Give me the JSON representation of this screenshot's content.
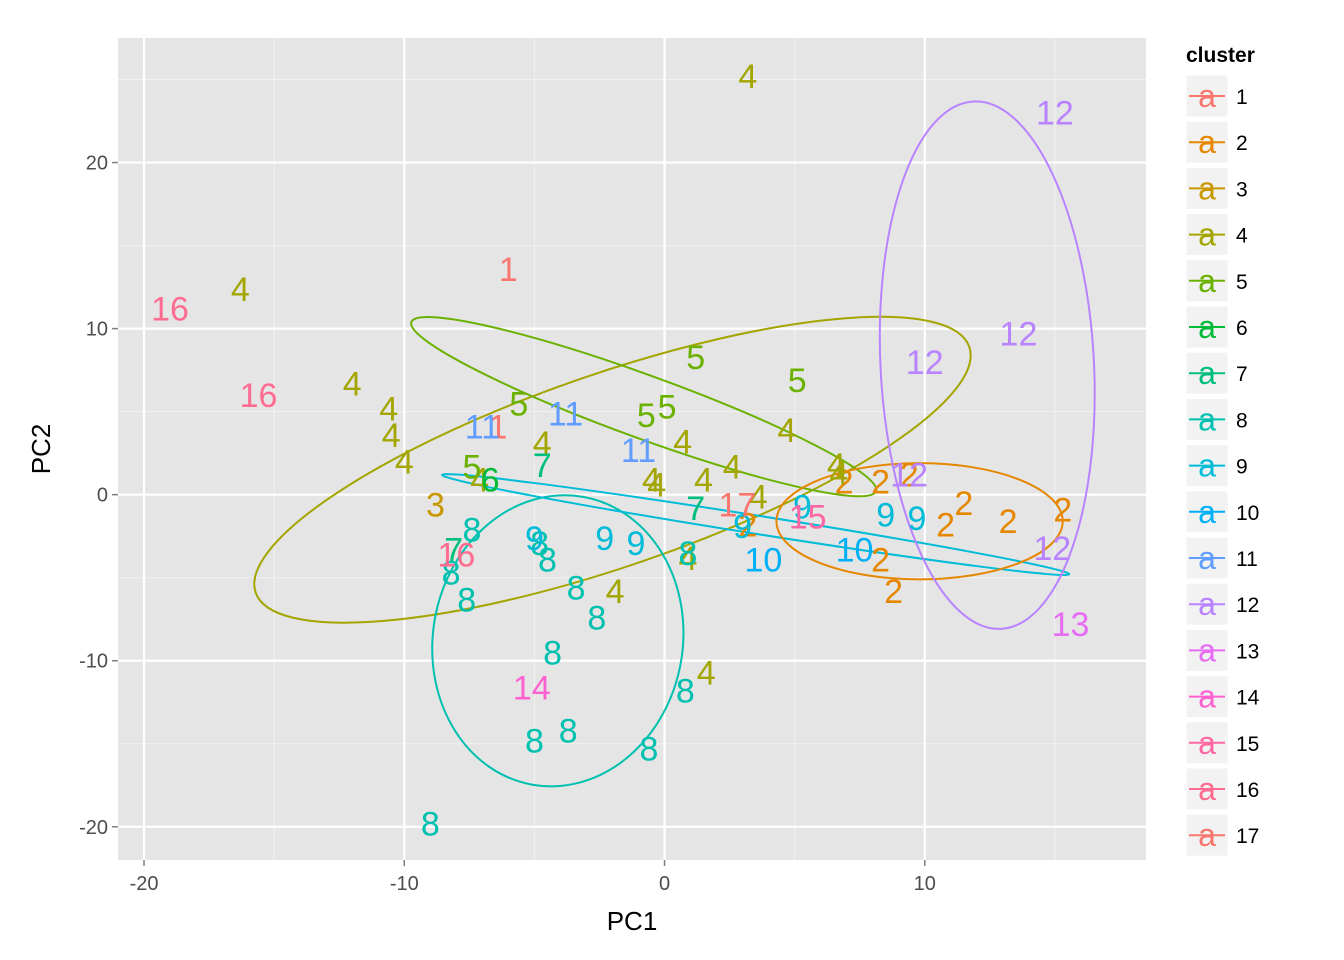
{
  "chart_data": {
    "type": "scatter",
    "xlabel": "PC1",
    "ylabel": "PC2",
    "xlim": [
      -21,
      18.5
    ],
    "ylim": [
      -22,
      27.5
    ],
    "x_ticks": [
      -20,
      -10,
      0,
      10
    ],
    "y_ticks": [
      -20,
      -10,
      0,
      10,
      20
    ],
    "grid": true,
    "legend": {
      "title": "cluster",
      "position": "right",
      "glyph": "a",
      "entries": [
        "1",
        "2",
        "3",
        "4",
        "5",
        "6",
        "7",
        "8",
        "9",
        "10",
        "11",
        "12",
        "13",
        "14",
        "15",
        "16",
        "17"
      ]
    },
    "colors": {
      "1": "#F8766D",
      "2": "#E58700",
      "3": "#C99800",
      "4": "#A3A500",
      "5": "#6BB100",
      "6": "#00BA38",
      "7": "#00BF7D",
      "8": "#00C0AF",
      "9": "#00BCD8",
      "10": "#00B0F6",
      "11": "#619CFF",
      "12": "#B983FF",
      "13": "#E76BF3",
      "14": "#FD61D1",
      "15": "#FF67A4",
      "16": "#FF6C90",
      "17": "#F8766D"
    },
    "points": [
      {
        "x": -6.0,
        "y": 13.6,
        "cluster": "1"
      },
      {
        "x": -6.4,
        "y": 4.1,
        "cluster": "1"
      },
      {
        "x": 6.9,
        "y": 0.8,
        "cluster": "2"
      },
      {
        "x": 8.3,
        "y": 0.8,
        "cluster": "2"
      },
      {
        "x": 9.4,
        "y": 1.2,
        "cluster": "2"
      },
      {
        "x": 11.5,
        "y": -0.5,
        "cluster": "2"
      },
      {
        "x": 3.2,
        "y": -1.8,
        "cluster": "2"
      },
      {
        "x": 10.8,
        "y": -1.8,
        "cluster": "2"
      },
      {
        "x": 13.2,
        "y": -1.6,
        "cluster": "2"
      },
      {
        "x": 15.3,
        "y": -0.9,
        "cluster": "2"
      },
      {
        "x": 8.3,
        "y": -3.9,
        "cluster": "2"
      },
      {
        "x": 8.8,
        "y": -5.8,
        "cluster": "2"
      },
      {
        "x": -8.8,
        "y": -0.6,
        "cluster": "3"
      },
      {
        "x": 3.2,
        "y": 25.2,
        "cluster": "4"
      },
      {
        "x": -16.3,
        "y": 12.4,
        "cluster": "4"
      },
      {
        "x": -12.0,
        "y": 6.7,
        "cluster": "4"
      },
      {
        "x": -10.6,
        "y": 5.2,
        "cluster": "4"
      },
      {
        "x": -10.5,
        "y": 3.6,
        "cluster": "4"
      },
      {
        "x": -10.0,
        "y": 2.0,
        "cluster": "4"
      },
      {
        "x": -4.7,
        "y": 3.1,
        "cluster": "4"
      },
      {
        "x": 0.7,
        "y": 3.2,
        "cluster": "4"
      },
      {
        "x": 4.7,
        "y": 3.9,
        "cluster": "4"
      },
      {
        "x": -7.1,
        "y": 0.9,
        "cluster": "4"
      },
      {
        "x": -0.5,
        "y": 0.9,
        "cluster": "4"
      },
      {
        "x": -0.3,
        "y": 0.6,
        "cluster": "4"
      },
      {
        "x": 1.5,
        "y": 0.9,
        "cluster": "4"
      },
      {
        "x": 2.6,
        "y": 1.7,
        "cluster": "4"
      },
      {
        "x": 3.6,
        "y": -0.1,
        "cluster": "4"
      },
      {
        "x": 6.7,
        "y": 1.3,
        "cluster": "4"
      },
      {
        "x": 6.6,
        "y": 1.8,
        "cluster": "4"
      },
      {
        "x": 0.9,
        "y": -3.8,
        "cluster": "4"
      },
      {
        "x": -1.9,
        "y": -5.8,
        "cluster": "4"
      },
      {
        "x": 1.6,
        "y": -10.7,
        "cluster": "4"
      },
      {
        "x": 1.2,
        "y": 8.3,
        "cluster": "5"
      },
      {
        "x": 5.1,
        "y": 6.9,
        "cluster": "5"
      },
      {
        "x": -5.6,
        "y": 5.5,
        "cluster": "5"
      },
      {
        "x": -0.7,
        "y": 4.8,
        "cluster": "5"
      },
      {
        "x": 0.1,
        "y": 5.3,
        "cluster": "5"
      },
      {
        "x": -7.4,
        "y": 1.7,
        "cluster": "5"
      },
      {
        "x": -6.7,
        "y": 0.9,
        "cluster": "6"
      },
      {
        "x": -4.7,
        "y": 1.8,
        "cluster": "7"
      },
      {
        "x": 1.2,
        "y": -0.8,
        "cluster": "7"
      },
      {
        "x": -8.1,
        "y": -3.3,
        "cluster": "7"
      },
      {
        "x": -7.4,
        "y": -2.1,
        "cluster": "8"
      },
      {
        "x": -4.8,
        "y": -2.9,
        "cluster": "8"
      },
      {
        "x": -4.5,
        "y": -3.9,
        "cluster": "8"
      },
      {
        "x": -8.2,
        "y": -4.7,
        "cluster": "8"
      },
      {
        "x": -7.6,
        "y": -6.3,
        "cluster": "8"
      },
      {
        "x": -3.4,
        "y": -5.6,
        "cluster": "8"
      },
      {
        "x": -2.6,
        "y": -7.4,
        "cluster": "8"
      },
      {
        "x": 0.9,
        "y": -3.5,
        "cluster": "8"
      },
      {
        "x": -4.3,
        "y": -9.5,
        "cluster": "8"
      },
      {
        "x": 0.8,
        "y": -11.8,
        "cluster": "8"
      },
      {
        "x": -3.7,
        "y": -14.2,
        "cluster": "8"
      },
      {
        "x": -5.0,
        "y": -14.8,
        "cluster": "8"
      },
      {
        "x": -0.6,
        "y": -15.3,
        "cluster": "8"
      },
      {
        "x": -9.0,
        "y": -19.8,
        "cluster": "8"
      },
      {
        "x": -5.0,
        "y": -2.6,
        "cluster": "9"
      },
      {
        "x": -2.3,
        "y": -2.6,
        "cluster": "9"
      },
      {
        "x": -1.1,
        "y": -2.9,
        "cluster": "9"
      },
      {
        "x": 3.0,
        "y": -1.9,
        "cluster": "9"
      },
      {
        "x": 5.3,
        "y": -0.7,
        "cluster": "9"
      },
      {
        "x": 8.5,
        "y": -1.2,
        "cluster": "9"
      },
      {
        "x": 9.7,
        "y": -1.4,
        "cluster": "9"
      },
      {
        "x": 3.8,
        "y": -3.9,
        "cluster": "10"
      },
      {
        "x": 7.3,
        "y": -3.3,
        "cluster": "10"
      },
      {
        "x": -7.0,
        "y": 4.1,
        "cluster": "11"
      },
      {
        "x": -3.8,
        "y": 4.9,
        "cluster": "11"
      },
      {
        "x": -1.0,
        "y": 2.7,
        "cluster": "11"
      },
      {
        "x": 15.0,
        "y": 23.0,
        "cluster": "12"
      },
      {
        "x": 13.6,
        "y": 9.7,
        "cluster": "12"
      },
      {
        "x": 10.0,
        "y": 8.0,
        "cluster": "12"
      },
      {
        "x": 9.4,
        "y": 1.2,
        "cluster": "12"
      },
      {
        "x": 14.9,
        "y": -3.2,
        "cluster": "12"
      },
      {
        "x": 15.6,
        "y": -7.8,
        "cluster": "13"
      },
      {
        "x": -5.1,
        "y": -11.6,
        "cluster": "14"
      },
      {
        "x": 5.5,
        "y": -1.3,
        "cluster": "15"
      },
      {
        "x": -19.0,
        "y": 11.2,
        "cluster": "16"
      },
      {
        "x": -15.6,
        "y": 6.0,
        "cluster": "16"
      },
      {
        "x": -8.0,
        "y": -3.6,
        "cluster": "16"
      },
      {
        "x": 2.8,
        "y": -0.6,
        "cluster": "17"
      }
    ],
    "ellipses": [
      {
        "cluster": "4",
        "cx": -2.0,
        "cy": 1.5,
        "rx": 14.5,
        "ry": 5.8,
        "angle_deg": -19
      },
      {
        "cluster": "5",
        "cx": -0.8,
        "cy": 5.3,
        "rx": 9.5,
        "ry": 1.9,
        "angle_deg": 20
      },
      {
        "cluster": "8",
        "cx": -4.1,
        "cy": -8.8,
        "rx": 4.8,
        "ry": 8.8,
        "angle_deg": 10
      },
      {
        "cluster": "9",
        "cx": 3.5,
        "cy": -1.8,
        "rx": 12.2,
        "ry": 0.55,
        "angle_deg": 9
      },
      {
        "cluster": "2",
        "cx": 9.8,
        "cy": -1.6,
        "rx": 5.5,
        "ry": 3.5,
        "angle_deg": 0
      },
      {
        "cluster": "12",
        "cx": 12.4,
        "cy": 7.8,
        "rx": 4.1,
        "ry": 15.9,
        "angle_deg": -3
      }
    ]
  }
}
